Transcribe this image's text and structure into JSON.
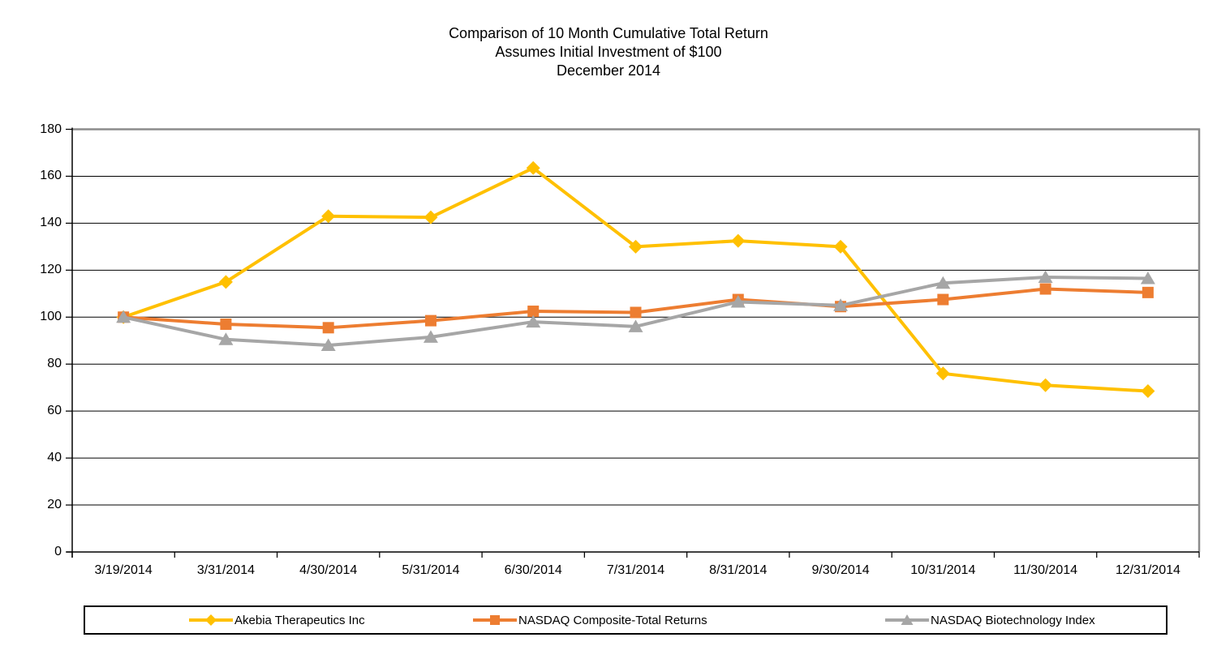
{
  "title": {
    "line1": "Comparison of 10 Month Cumulative Total Return",
    "line2": "Assumes Initial Investment of $100",
    "line3": "December 2014"
  },
  "chart_data": {
    "type": "line",
    "title": "Comparison of 10 Month Cumulative Total Return — Assumes Initial Investment of $100 — December 2014",
    "xlabel": "",
    "ylabel": "",
    "ylim": [
      0,
      180
    ],
    "ytick_step": 20,
    "y_tick_labels": [
      "0",
      "20",
      "40",
      "60",
      "80",
      "100",
      "120",
      "140",
      "160",
      "180"
    ],
    "grid": "horizontal-on",
    "legend_position": "bottom",
    "categories": [
      "3/19/2014",
      "3/31/2014",
      "4/30/2014",
      "5/31/2014",
      "6/30/2014",
      "7/31/2014",
      "8/31/2014",
      "9/30/2014",
      "10/31/2014",
      "11/30/2014",
      "12/31/2014"
    ],
    "series": [
      {
        "name": "Akebia Therapeutics Inc",
        "color": "#FFC000",
        "marker": "diamond",
        "values": [
          100,
          115,
          143,
          142.5,
          163.5,
          130,
          132.5,
          130,
          76,
          71,
          68.5
        ]
      },
      {
        "name": "NASDAQ Composite-Total Returns",
        "color": "#ED7D31",
        "marker": "square",
        "values": [
          100,
          97,
          95.5,
          98.5,
          102.5,
          102,
          107.5,
          104.5,
          107.5,
          112,
          110.5
        ]
      },
      {
        "name": "NASDAQ Biotechnology Index",
        "color": "#A6A6A6",
        "marker": "triangle",
        "values": [
          100,
          90.5,
          88,
          91.5,
          98,
          96,
          106.5,
          105,
          114.5,
          117,
          116.5
        ]
      }
    ],
    "colors": {
      "gridline": "#000000",
      "axis": "#000000",
      "plot_border": "#8C8C8C",
      "background": "#FFFFFF"
    }
  }
}
